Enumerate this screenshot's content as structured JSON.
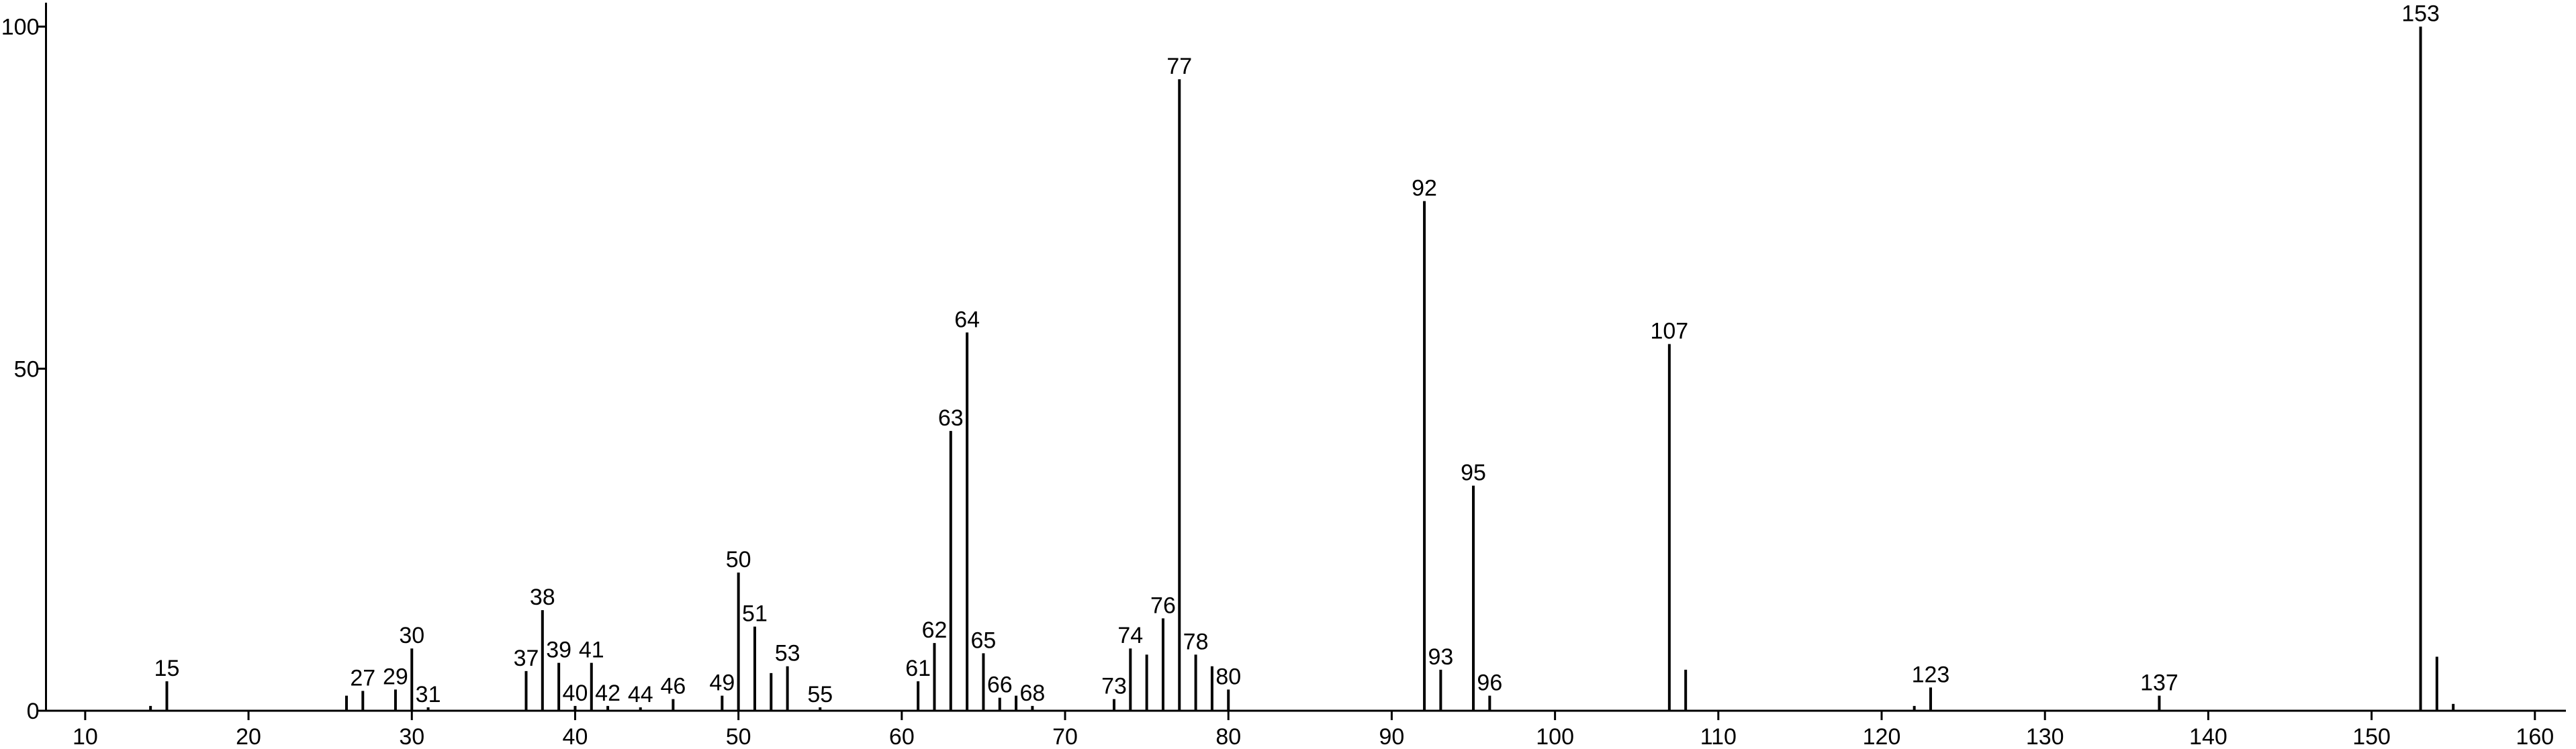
{
  "chart_data": {
    "type": "bar",
    "color": "#000000",
    "x": [
      14,
      15,
      26,
      27,
      29,
      30,
      31,
      37,
      38,
      39,
      40,
      41,
      42,
      44,
      46,
      49,
      50,
      51,
      52,
      53,
      55,
      61,
      62,
      63,
      64,
      65,
      66,
      67,
      68,
      73,
      74,
      75,
      76,
      77,
      78,
      79,
      80,
      92,
      93,
      95,
      96,
      107,
      108,
      122,
      123,
      137,
      153,
      154,
      155
    ],
    "values": [
      0.7,
      4.3,
      2.2,
      2.9,
      3.1,
      9.1,
      0.5,
      5.8,
      14.7,
      7.0,
      0.7,
      7.0,
      0.7,
      0.5,
      1.7,
      2.2,
      20.2,
      12.3,
      5.5,
      6.5,
      0.5,
      4.3,
      9.9,
      40.9,
      55.3,
      8.4,
      1.9,
      2.2,
      0.7,
      1.7,
      9.1,
      8.2,
      13.5,
      92.3,
      8.2,
      6.5,
      3.1,
      74.5,
      6.0,
      32.9,
      2.2,
      53.6,
      6.0,
      0.7,
      3.4,
      2.2,
      100,
      7.9,
      1.0
    ],
    "labeled": [
      false,
      true,
      false,
      true,
      true,
      true,
      true,
      true,
      true,
      true,
      true,
      true,
      true,
      true,
      true,
      true,
      true,
      true,
      false,
      true,
      true,
      true,
      true,
      true,
      true,
      true,
      true,
      false,
      true,
      true,
      true,
      false,
      true,
      true,
      true,
      false,
      true,
      true,
      true,
      true,
      true,
      true,
      false,
      false,
      true,
      true,
      true,
      false,
      false
    ],
    "xlim": [
      7.6,
      161.9
    ],
    "xticks": [
      10,
      20,
      30,
      40,
      50,
      60,
      70,
      80,
      90,
      100,
      110,
      120,
      130,
      140,
      150,
      160
    ],
    "ylim": [
      0,
      103.5
    ],
    "yticks": [
      0,
      50,
      100
    ],
    "grid": false
  }
}
